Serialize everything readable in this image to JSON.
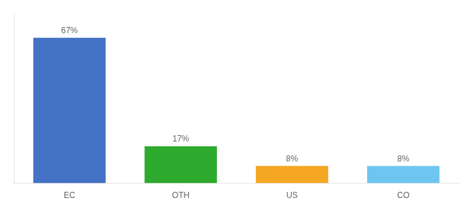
{
  "chart_data": {
    "type": "bar",
    "categories": [
      "EC",
      "OTH",
      "US",
      "CO"
    ],
    "values": [
      67,
      17,
      8,
      8
    ],
    "value_labels": [
      "67%",
      "17%",
      "8%",
      "8%"
    ],
    "data_labels": true,
    "colors": [
      "#4472c4",
      "#2eaa2e",
      "#f5a623",
      "#6ec6f0"
    ],
    "ylim": [
      0,
      78
    ],
    "grid": false,
    "tick_labels": "x"
  }
}
